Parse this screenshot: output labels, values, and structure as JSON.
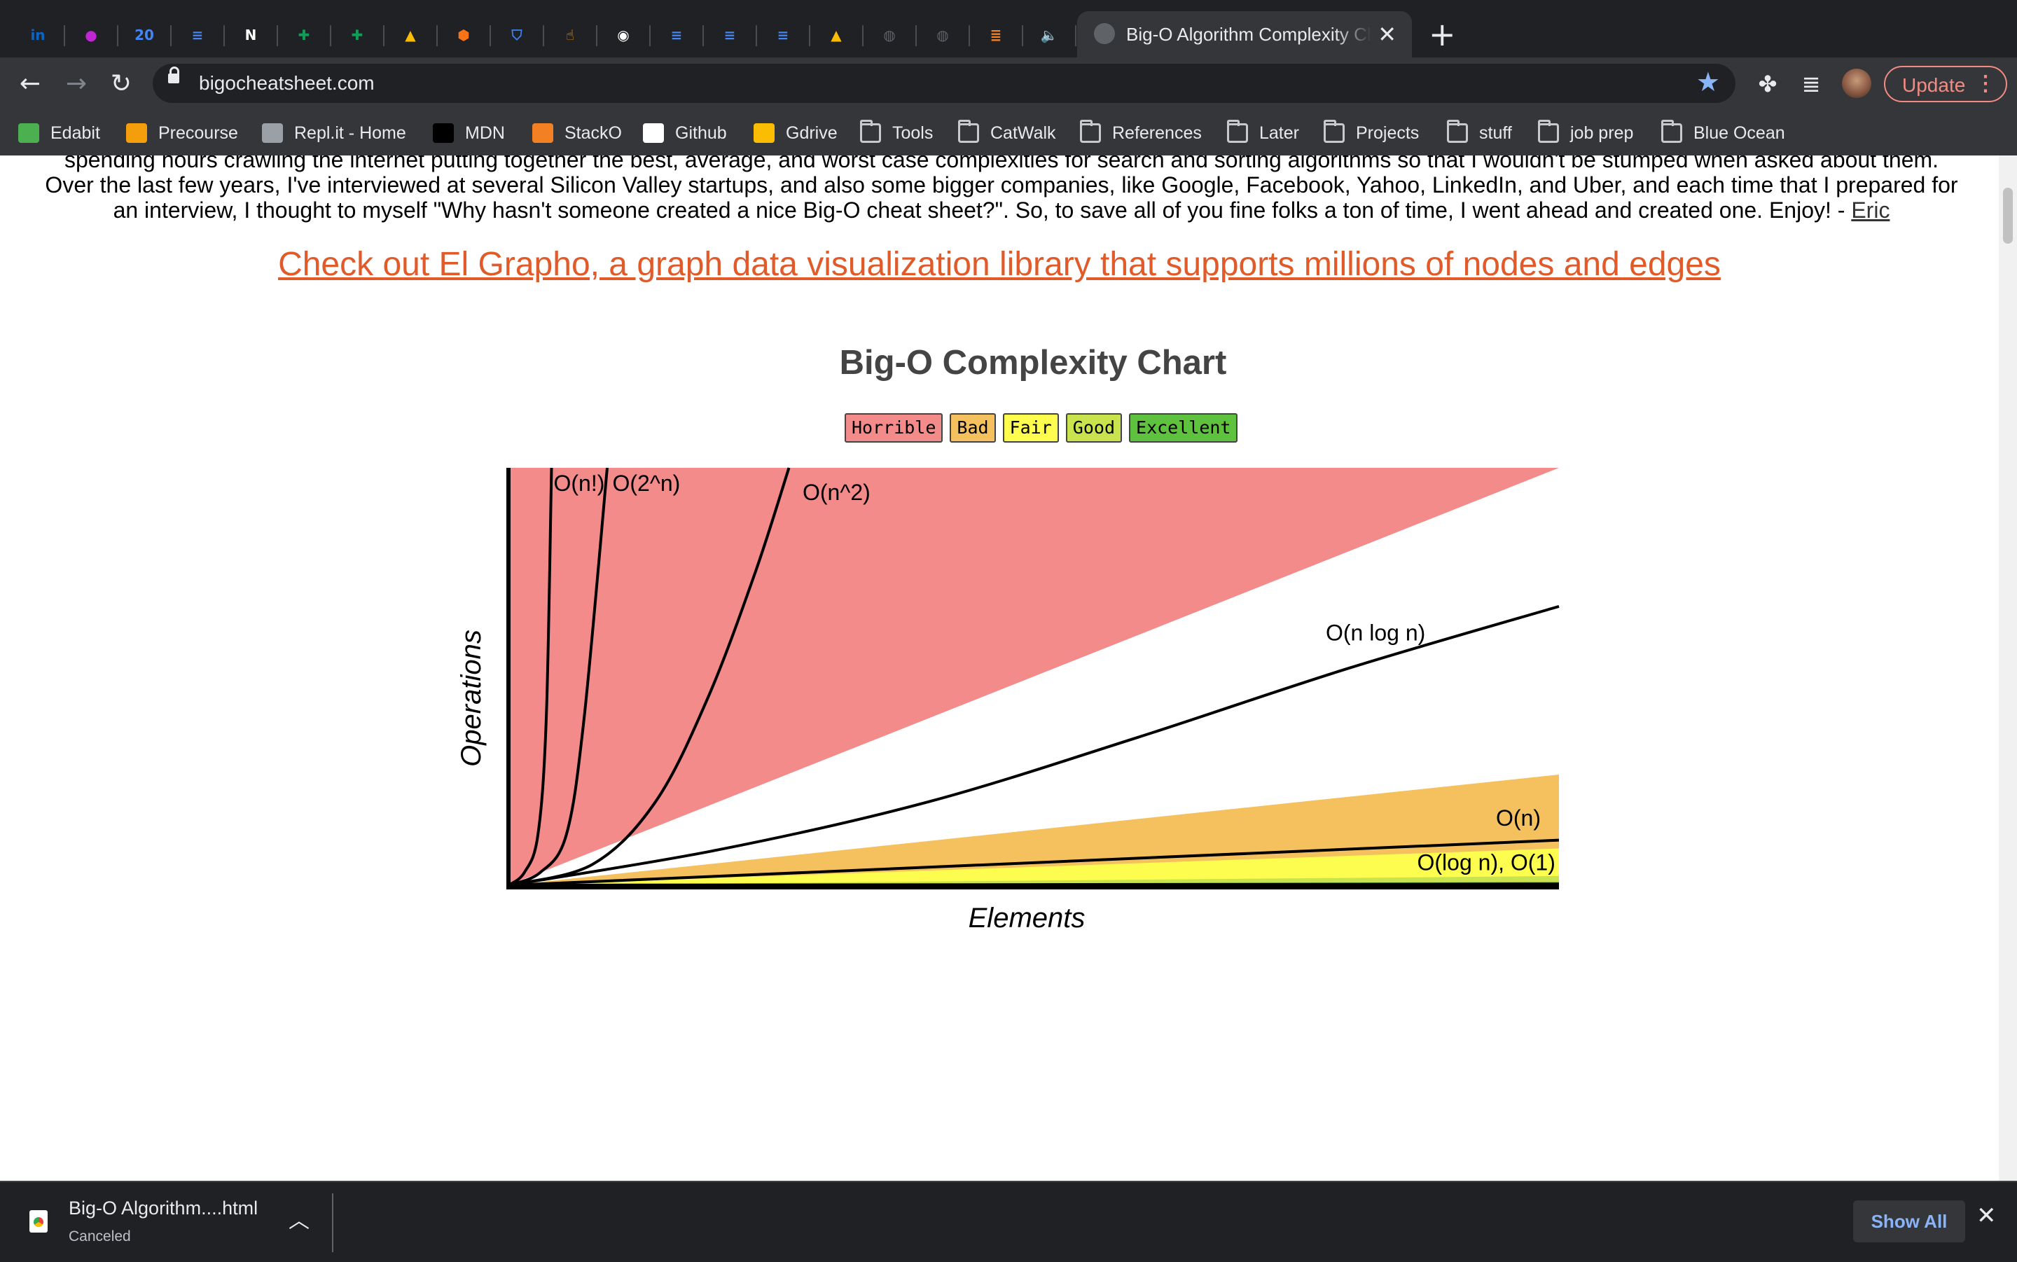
{
  "browser": {
    "pinned_tabs": [
      {
        "icon": "linkedin-icon",
        "glyph": "in",
        "color": "#0a66c2"
      },
      {
        "icon": "circle-logo-icon",
        "glyph": "●",
        "color": "#c026d3"
      },
      {
        "icon": "google-calendar-icon",
        "glyph": "20",
        "color": "#4285f4"
      },
      {
        "icon": "google-docs-icon",
        "glyph": "≡",
        "color": "#4285f4"
      },
      {
        "icon": "notion-icon",
        "glyph": "N",
        "color": "#ffffff"
      },
      {
        "icon": "google-sheets-icon",
        "glyph": "✚",
        "color": "#0f9d58"
      },
      {
        "icon": "google-sheets-icon",
        "glyph": "✚",
        "color": "#0f9d58"
      },
      {
        "icon": "google-drive-icon",
        "glyph": "▲",
        "color": "#fbbc04"
      },
      {
        "icon": "box-icon",
        "glyph": "⬢",
        "color": "#f97316"
      },
      {
        "icon": "shield-icon",
        "glyph": "⛉",
        "color": "#3b82f6"
      },
      {
        "icon": "hand-icon",
        "glyph": "☝",
        "color": "#f59e0b"
      },
      {
        "icon": "github-icon",
        "glyph": "◉",
        "color": "#ffffff"
      },
      {
        "icon": "google-docs-icon",
        "glyph": "≡",
        "color": "#4285f4"
      },
      {
        "icon": "google-docs-icon",
        "glyph": "≡",
        "color": "#4285f4"
      },
      {
        "icon": "google-docs-icon",
        "glyph": "≡",
        "color": "#4285f4"
      },
      {
        "icon": "google-drive-icon",
        "glyph": "▲",
        "color": "#fbbc04"
      },
      {
        "icon": "globe-icon",
        "glyph": "◍",
        "color": "#5f6368"
      },
      {
        "icon": "globe-icon",
        "glyph": "◍",
        "color": "#5f6368"
      },
      {
        "icon": "stackoverflow-icon",
        "glyph": "≣",
        "color": "#f48024"
      },
      {
        "icon": "speaker-icon",
        "glyph": "🔈",
        "color": "#e8eaed"
      }
    ],
    "active_tab": {
      "title": "Big-O Algorithm Complexity Cheat Sheet (Know Thy Complexities!)"
    },
    "url": "bigocheatsheet.com",
    "update_label": "Update",
    "bookmarks": [
      {
        "label": "Edabit",
        "icon": "edabit-icon",
        "color": "#4caf50"
      },
      {
        "label": "Precourse",
        "icon": "hand-icon",
        "color": "#f59e0b"
      },
      {
        "label": "Repl.it - Home",
        "icon": "replit-icon",
        "color": "#9aa0a6"
      },
      {
        "label": "MDN",
        "icon": "mdn-icon",
        "color": "#000000"
      },
      {
        "label": "StackO",
        "icon": "stackoverflow-icon",
        "color": "#f48024"
      },
      {
        "label": "Github",
        "icon": "github-icon",
        "color": "#ffffff"
      },
      {
        "label": "Gdrive",
        "icon": "google-drive-icon",
        "color": "#fbbc04"
      },
      {
        "label": "Tools",
        "icon": "folder-icon",
        "color": "folder"
      },
      {
        "label": "CatWalk",
        "icon": "folder-icon",
        "color": "folder"
      },
      {
        "label": "References",
        "icon": "folder-icon",
        "color": "folder"
      },
      {
        "label": "Later",
        "icon": "folder-icon",
        "color": "folder"
      },
      {
        "label": "Projects",
        "icon": "folder-icon",
        "color": "folder"
      },
      {
        "label": "stuff",
        "icon": "folder-icon",
        "color": "folder"
      },
      {
        "label": "job prep",
        "icon": "folder-icon",
        "color": "folder"
      },
      {
        "label": "Blue Ocean",
        "icon": "folder-icon",
        "color": "folder"
      }
    ]
  },
  "page": {
    "intro_lines": [
      "spending hours crawling the internet putting together the best, average, and worst case complexities for search and sorting algorithms so that I wouldn't be stumped when asked about them.",
      "Over the last few years, I've interviewed at several Silicon Valley startups, and also some bigger companies, like Google, Facebook, Yahoo, LinkedIn, and Uber, and each time that I prepared for",
      "an interview, I thought to myself \"Why hasn't someone created a nice Big-O cheat sheet?\".  So, to save all of you fine folks a ton of time, I went ahead and created one.  Enjoy! - "
    ],
    "intro_author_link": "Eric",
    "promo_link": "Check out El Grapho, a graph data visualization library that supports millions of nodes and edges"
  },
  "chart_data": {
    "type": "area",
    "title": "Big-O Complexity Chart",
    "xlabel": "Elements",
    "ylabel": "Operations",
    "legend": [
      {
        "label": "Horrible",
        "color": "#f28b89"
      },
      {
        "label": "Bad",
        "color": "#f5c15f"
      },
      {
        "label": "Fair",
        "color": "#fdfd4f"
      },
      {
        "label": "Good",
        "color": "#c9e34e"
      },
      {
        "label": "Excellent",
        "color": "#5ec23e"
      }
    ],
    "legend_placement": "top-center",
    "grid": false,
    "xlim": [
      0,
      100
    ],
    "ylim": [
      0,
      100
    ],
    "regions": [
      {
        "name": "Horrible",
        "color": "#f28b89",
        "lower_boundary": [
          [
            0,
            0
          ],
          [
            100,
            100
          ]
        ]
      },
      {
        "name": "Bad",
        "color": "#f5c15f",
        "lower_boundary": [
          [
            0,
            0
          ],
          [
            100,
            26.5
          ]
        ]
      },
      {
        "name": "Fair",
        "color": "#fdfd4f",
        "lower_boundary": [
          [
            0,
            0
          ],
          [
            100,
            8.8
          ]
        ]
      },
      {
        "name": "Good",
        "color": "#c9e34e",
        "lower_boundary": [
          [
            0,
            0
          ],
          [
            100,
            2.2
          ]
        ]
      },
      {
        "name": "Excellent",
        "color": "#5ec23e",
        "lower_boundary": [
          [
            0,
            0
          ],
          [
            100,
            0.8
          ]
        ]
      }
    ],
    "series": [
      {
        "name": "O(n!)",
        "points": [
          [
            0,
            0
          ],
          [
            1.5,
            3
          ],
          [
            2.8,
            12
          ],
          [
            3.6,
            40
          ],
          [
            4.1,
            100
          ]
        ]
      },
      {
        "name": "O(2^n)",
        "points": [
          [
            0,
            0
          ],
          [
            3,
            3
          ],
          [
            5.5,
            12
          ],
          [
            7.2,
            40
          ],
          [
            9.4,
            100
          ]
        ]
      },
      {
        "name": "O(n^2)",
        "points": [
          [
            0,
            0
          ],
          [
            8,
            5
          ],
          [
            14,
            20
          ],
          [
            19,
            45
          ],
          [
            23.5,
            75
          ],
          [
            26.7,
            100
          ]
        ]
      },
      {
        "name": "O(n log n)",
        "points": [
          [
            0,
            0
          ],
          [
            20,
            8.5
          ],
          [
            40,
            20
          ],
          [
            60,
            35.5
          ],
          [
            80,
            52
          ],
          [
            100,
            66.8
          ]
        ]
      },
      {
        "name": "O(n)",
        "points": [
          [
            0,
            0
          ],
          [
            100,
            10.8
          ]
        ]
      },
      {
        "name": "O(log n), O(1)",
        "points": [
          [
            0,
            0
          ],
          [
            100,
            0.3
          ]
        ]
      }
    ],
    "labels": [
      {
        "text": "O(n!)",
        "x": 4.3,
        "y": 94.5
      },
      {
        "text": "O(2^n)",
        "x": 9.9,
        "y": 94.5
      },
      {
        "text": "O(n^2)",
        "x": 28,
        "y": 92.3
      },
      {
        "text": "O(n log n)",
        "x": 77.8,
        "y": 58.6
      },
      {
        "text": "O(n)",
        "x": 94,
        "y": 14.3
      },
      {
        "text": "O(log n), O(1)",
        "x": 86.5,
        "y": 3.6
      }
    ]
  },
  "downloads": {
    "filename": "Big-O Algorithm....html",
    "status": "Canceled",
    "show_all": "Show All"
  }
}
